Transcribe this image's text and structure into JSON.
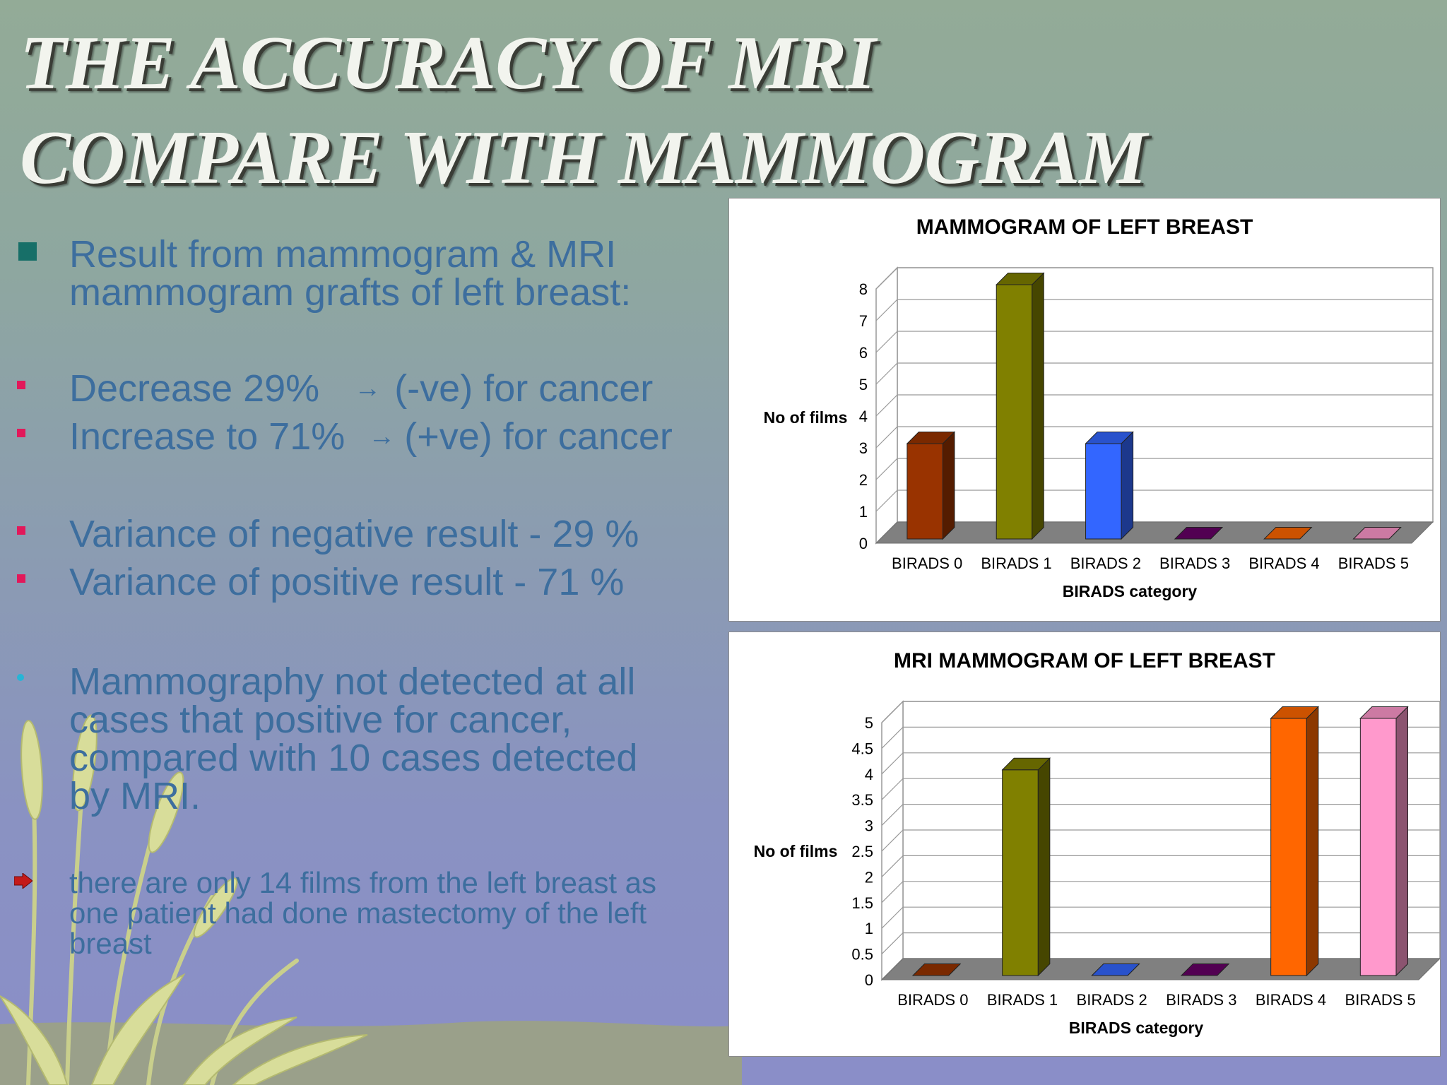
{
  "slide": {
    "title_line1": "THE ACCURACY OF MRI",
    "title_line2": "COMPARE WITH MAMMOGRAM",
    "bullets": [
      {
        "lines": [
          "Result from mammogram & MRI",
          "mammogram grafts of left breast:"
        ]
      },
      {
        "before": "Decrease 29%",
        "after": "(-ve) for cancer"
      },
      {
        "before": "Increase to 71%",
        "after": "(+ve) for cancer"
      },
      {
        "text": "Variance of negative result - 29 %"
      },
      {
        "text": "Variance of positive result - 71 %"
      },
      {
        "lines": [
          "Mammography not detected at all",
          "cases that positive for cancer,",
          "compared with 10 cases detected",
          "by MRI."
        ]
      },
      {
        "lines": [
          "there are only 14 films from the left breast as",
          "one patient had done mastectomy of the left",
          "breast"
        ]
      }
    ],
    "arrow_glyph": "→"
  },
  "colors": {
    "bullet_text": "#3d6e9e",
    "title_text": "#f2f4ee",
    "BIRADS 0": "#993300",
    "BIRADS 1": "#808000",
    "BIRADS 2": "#3366ff",
    "BIRADS 3": "#660066",
    "BIRADS 4": "#ff6600",
    "BIRADS 5": "#ff99cc"
  },
  "chart_data": [
    {
      "type": "bar",
      "title": "MAMMOGRAM OF LEFT BREAST",
      "xlabel": "BIRADS category",
      "ylabel": "No of films",
      "categories": [
        "BIRADS 0",
        "BIRADS 1",
        "BIRADS 2",
        "BIRADS 3",
        "BIRADS 4",
        "BIRADS 5"
      ],
      "values": [
        3,
        8,
        3,
        0,
        0,
        0
      ],
      "ylim": [
        0,
        8
      ],
      "yticks": [
        "0",
        "1",
        "2",
        "3",
        "4",
        "5",
        "6",
        "7",
        "8"
      ],
      "grid": true,
      "style": "3d"
    },
    {
      "type": "bar",
      "title": "MRI MAMMOGRAM OF LEFT BREAST",
      "xlabel": "BIRADS category",
      "ylabel": "No of films",
      "categories": [
        "BIRADS 0",
        "BIRADS 1",
        "BIRADS 2",
        "BIRADS 3",
        "BIRADS 4",
        "BIRADS 5"
      ],
      "values": [
        0,
        4,
        0,
        0,
        5,
        5
      ],
      "ylim": [
        0,
        5
      ],
      "yticks": [
        "0",
        "0.5",
        "1",
        "1.5",
        "2",
        "2.5",
        "3",
        "3.5",
        "4",
        "4.5",
        "5"
      ],
      "grid": true,
      "style": "3d"
    }
  ]
}
